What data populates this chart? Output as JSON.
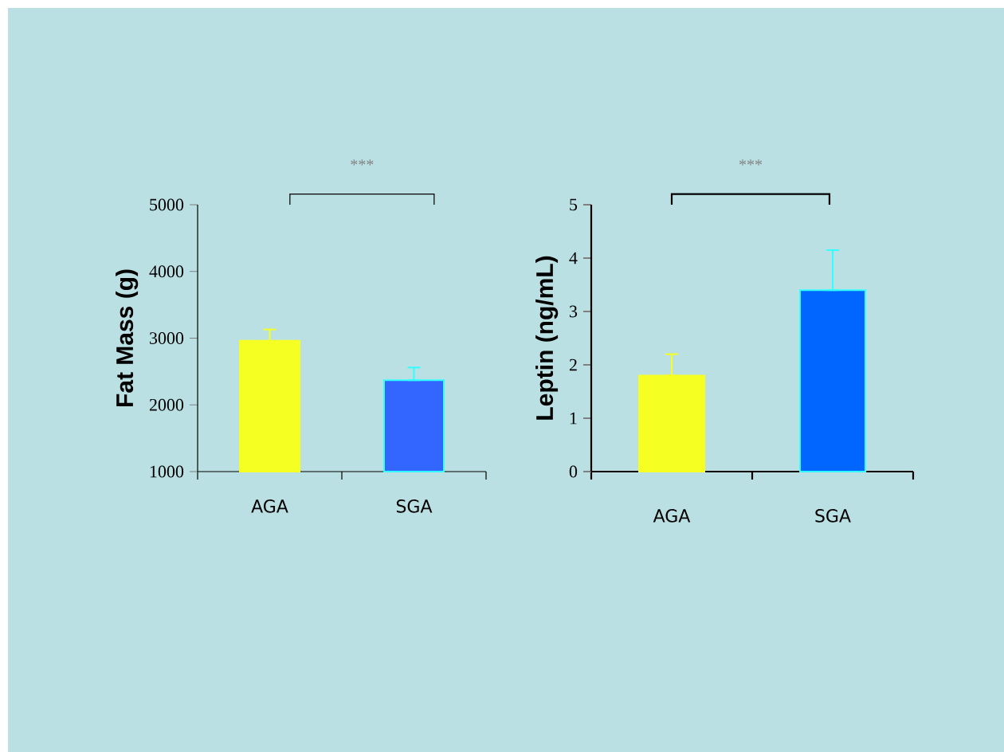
{
  "chart_data": [
    {
      "type": "bar",
      "categories": [
        "AGA",
        "SGA"
      ],
      "values": [
        2960,
        2370
      ],
      "colors": [
        "#f5ff22",
        "#3366ff"
      ],
      "errors": [
        [
          2960,
          3130
        ],
        [
          2370,
          2560
        ]
      ],
      "ylabel": "Fat Mass (g)",
      "ylim": [
        1000,
        5000
      ],
      "yticks": [
        1000,
        2000,
        3000,
        4000,
        5000
      ],
      "annotations": [
        "***"
      ]
    },
    {
      "type": "bar",
      "categories": [
        "AGA",
        "SGA"
      ],
      "values": [
        1.8,
        3.4
      ],
      "colors": [
        "#f5ff22",
        "#0066ff"
      ],
      "errors": [
        [
          1.8,
          2.2
        ],
        [
          3.4,
          4.15
        ]
      ],
      "ylabel": "Leptin (ng/mL)",
      "ylim": [
        0,
        5
      ],
      "yticks": [
        0,
        1,
        2,
        3,
        4,
        5
      ],
      "annotations": [
        "***"
      ]
    }
  ]
}
